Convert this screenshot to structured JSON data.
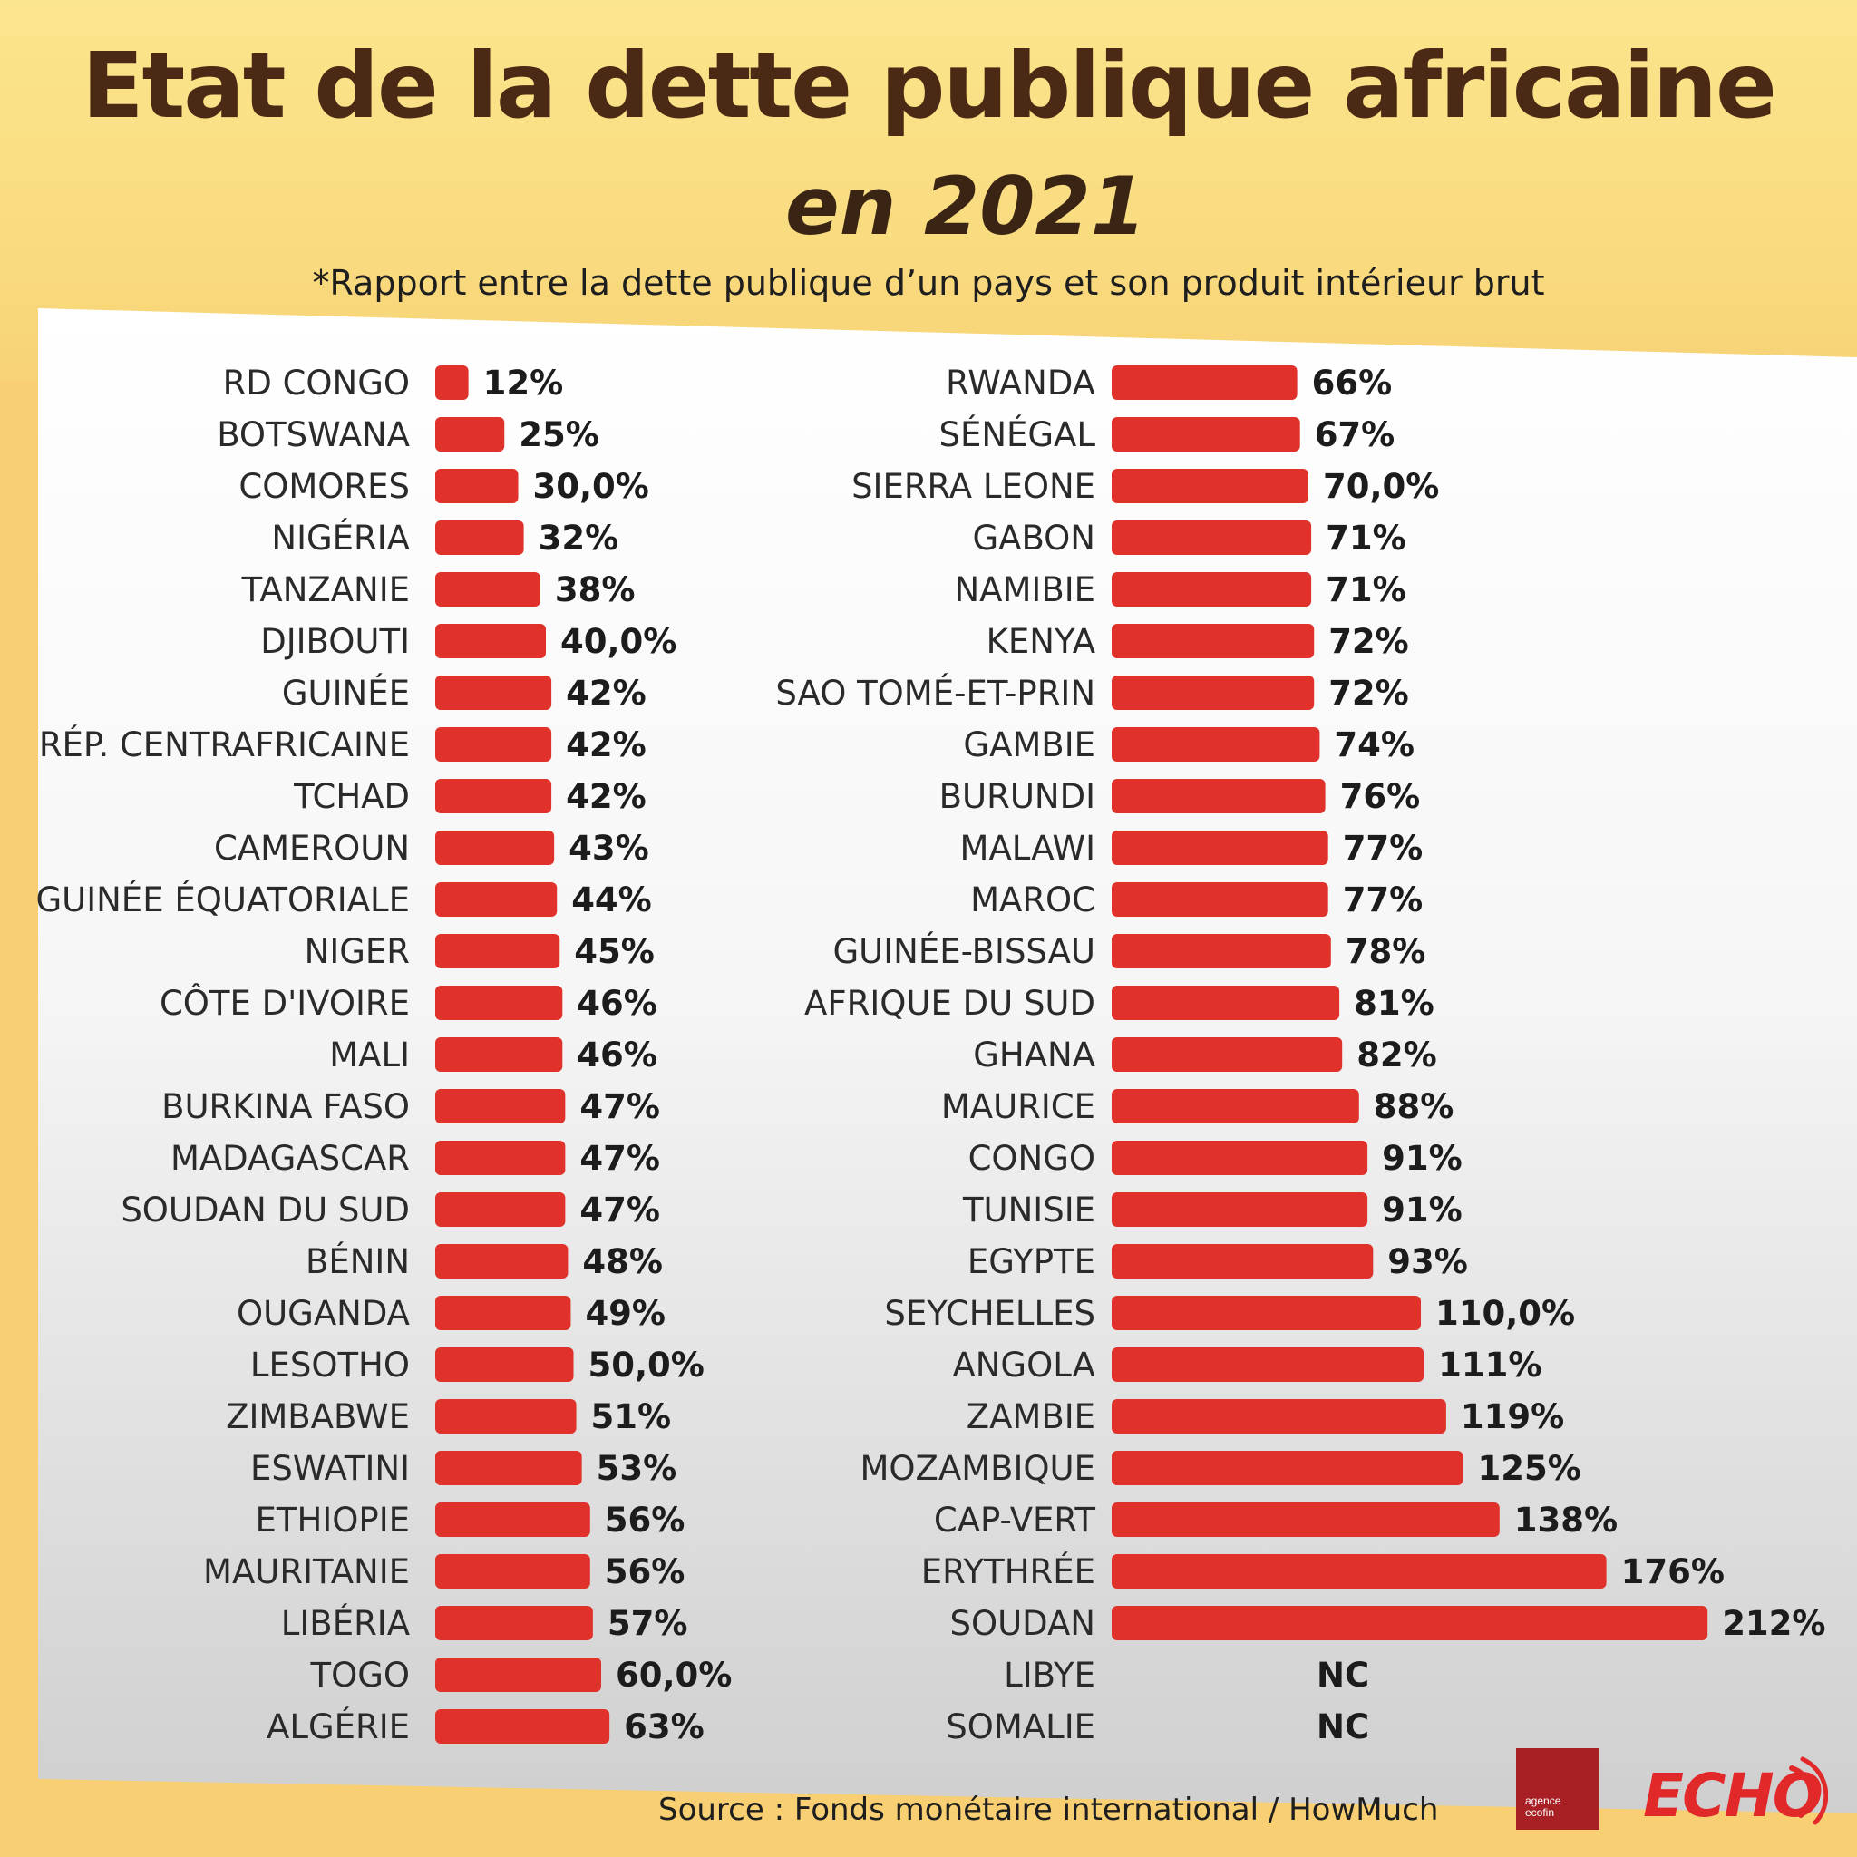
{
  "title": "Etat de la dette publique africaine",
  "subtitle": "en 2021",
  "note": "*Rapport entre la dette publique d’un pays et son produit intérieur brut",
  "source": "Source : Fonds monétaire international / HowMuch",
  "logos": {
    "ecofin_lines": [
      "agence",
      "ecofin"
    ],
    "echo": "ECHO"
  },
  "colors": {
    "bar": "#e0312a",
    "title": "#4a2a14",
    "background": "#f8cf73"
  },
  "chart_data": [
    {
      "type": "bar",
      "orientation": "horizontal",
      "categories": [
        "RD CONGO",
        "BOTSWANA",
        "COMORES",
        "NIGÉRIA",
        "TANZANIE",
        "DJIBOUTI",
        "GUINÉE",
        "RÉP. CENTRAFRICAINE",
        "TCHAD",
        "CAMEROUN",
        "GUINÉE ÉQUATORIALE",
        "NIGER",
        "CÔTE D'IVOIRE",
        "MALI",
        "BURKINA FASO",
        "MADAGASCAR",
        "SOUDAN DU SUD",
        "BÉNIN",
        "OUGANDA",
        "LESOTHO",
        "ZIMBABWE",
        "ESWATINI",
        "ETHIOPIE",
        "MAURITANIE",
        "LIBÉRIA",
        "TOGO",
        "ALGÉRIE"
      ],
      "values": [
        12,
        25,
        30,
        32,
        38,
        40,
        42,
        42,
        42,
        43,
        44,
        45,
        46,
        46,
        47,
        47,
        47,
        48,
        49,
        50,
        51,
        53,
        56,
        56,
        57,
        60,
        63
      ],
      "labels": [
        "12%",
        "25%",
        "30,0%",
        "32%",
        "38%",
        "40,0%",
        "42%",
        "42%",
        "42%",
        "43%",
        "44%",
        "45%",
        "46%",
        "46%",
        "47%",
        "47%",
        "47%",
        "48%",
        "49%",
        "50,0%",
        "51%",
        "53%",
        "56%",
        "56%",
        "57%",
        "60,0%",
        "63%"
      ],
      "unit": "%"
    },
    {
      "type": "bar",
      "orientation": "horizontal",
      "categories": [
        "RWANDA",
        "SÉNÉGAL",
        "SIERRA LEONE",
        "GABON",
        "NAMIBIE",
        "KENYA",
        "SAO TOMÉ-ET-PRIN",
        "GAMBIE",
        "BURUNDI",
        "MALAWI",
        "MAROC",
        "GUINÉE-BISSAU",
        "AFRIQUE DU SUD",
        "GHANA",
        "MAURICE",
        "CONGO",
        "TUNISIE",
        "EGYPTE",
        "SEYCHELLES",
        "ANGOLA",
        "ZAMBIE",
        "MOZAMBIQUE",
        "CAP-VERT",
        "ERYTHRÉE",
        "SOUDAN",
        "LIBYE",
        "SOMALIE"
      ],
      "values": [
        66,
        67,
        70,
        71,
        71,
        72,
        72,
        74,
        76,
        77,
        77,
        78,
        81,
        82,
        88,
        91,
        91,
        93,
        110,
        111,
        119,
        125,
        138,
        176,
        212,
        null,
        null
      ],
      "labels": [
        "66%",
        "67%",
        "70,0%",
        "71%",
        "71%",
        "72%",
        "72%",
        "74%",
        "76%",
        "77%",
        "77%",
        "78%",
        "81%",
        "82%",
        "88%",
        "91%",
        "91%",
        "93%",
        "110,0%",
        "111%",
        "119%",
        "125%",
        "138%",
        "176%",
        "212%",
        "NC",
        "NC"
      ],
      "unit": "%"
    }
  ]
}
